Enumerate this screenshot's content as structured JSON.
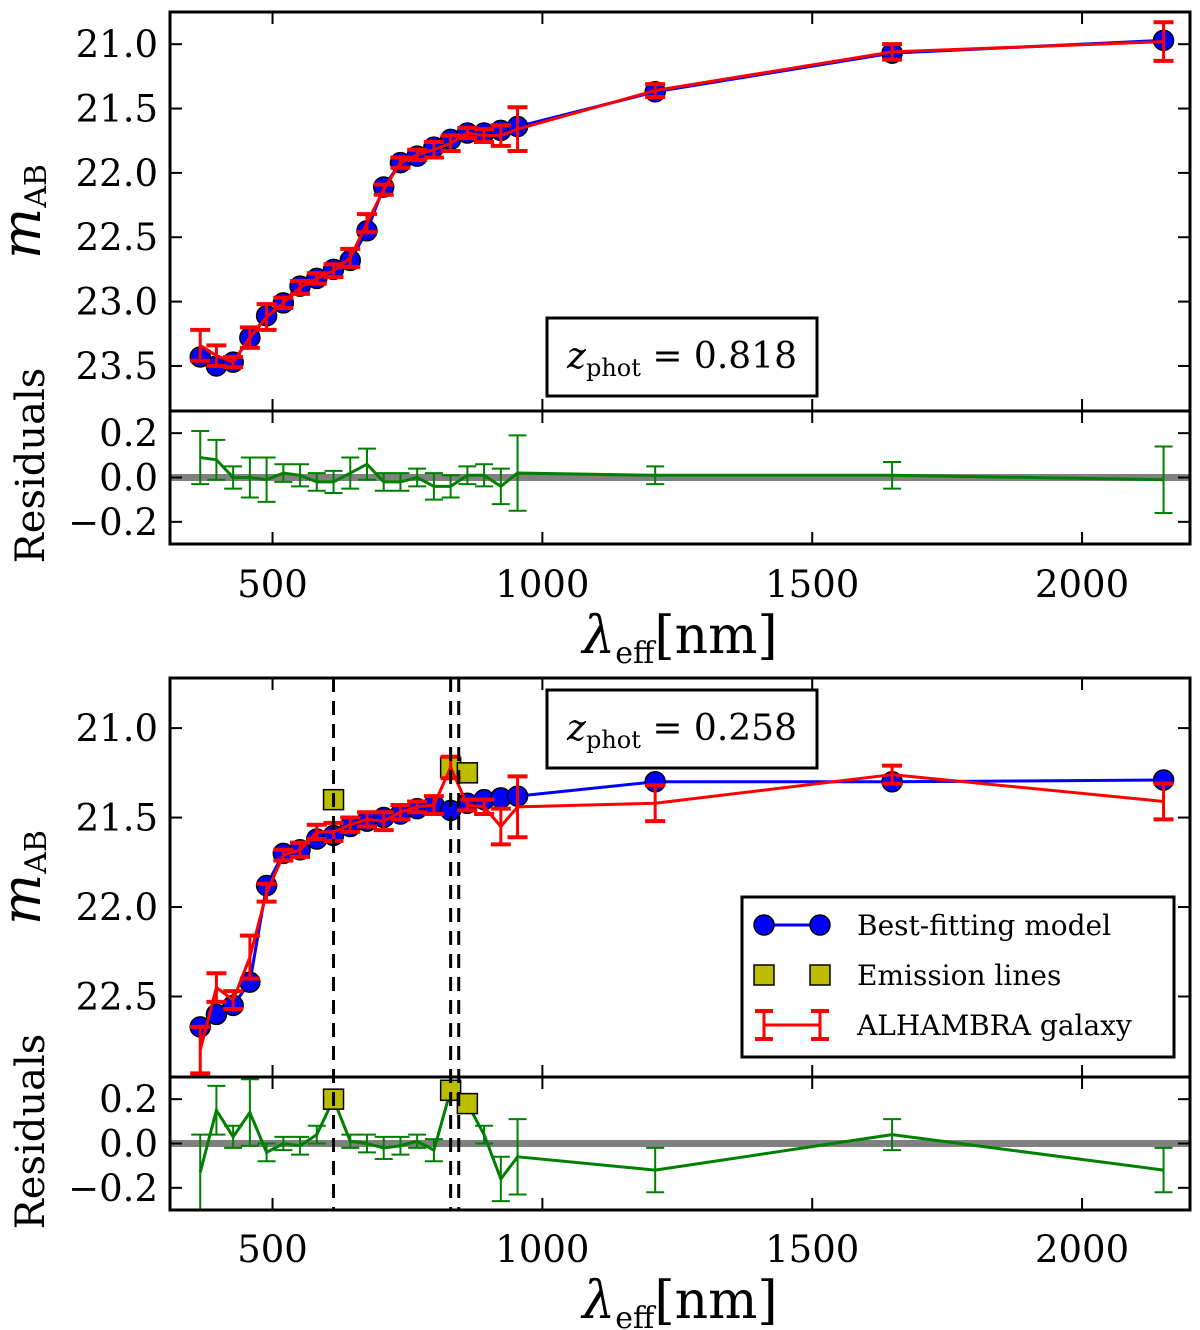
{
  "chart_data": [
    {
      "type": "line",
      "annotation": {
        "prefix": "z",
        "sub": "phot",
        "value": " = 0.818"
      },
      "top": {
        "ylabel_main": "m",
        "ylabel_sub": "AB",
        "ylim": [
          20.75,
          23.85
        ],
        "inverted": true,
        "yticks": [
          "21.0",
          "21.5",
          "22.0",
          "22.5",
          "23.0",
          "23.5"
        ],
        "ytick_values": [
          21.0,
          21.5,
          22.0,
          22.5,
          23.0,
          23.5
        ]
      },
      "bottom": {
        "ylabel": "Residuals",
        "ylim": [
          -0.3,
          0.3
        ],
        "yticks": [
          "0.2",
          "0.0",
          "−0.2"
        ],
        "ytick_values": [
          0.2,
          0.0,
          -0.2
        ]
      },
      "xlim": [
        310,
        2200
      ],
      "xticks": [
        "500",
        "1000",
        "1500",
        "2000"
      ],
      "xtick_values": [
        500,
        1000,
        1500,
        2000
      ],
      "xlabel_main": "λ",
      "xlabel_sub": "eff",
      "xlabel_unit": "[nm]",
      "x": [
        366,
        396,
        427,
        458,
        489,
        520,
        551,
        582,
        613,
        644,
        675,
        706,
        737,
        768,
        799,
        830,
        861,
        892,
        923,
        954,
        1209,
        1648,
        2151
      ],
      "series": [
        {
          "name": "model",
          "color": "#0000ff",
          "values": [
            23.43,
            23.5,
            23.47,
            23.28,
            23.11,
            23.01,
            22.88,
            22.82,
            22.75,
            22.68,
            22.45,
            22.11,
            21.92,
            21.87,
            21.8,
            21.74,
            21.69,
            21.69,
            21.67,
            21.64,
            21.37,
            21.07,
            20.97
          ]
        },
        {
          "name": "data",
          "color": "#ff0000",
          "values": [
            23.34,
            23.42,
            23.47,
            23.28,
            23.12,
            23.01,
            22.89,
            22.82,
            22.76,
            22.66,
            22.39,
            22.13,
            21.92,
            21.86,
            21.82,
            21.77,
            21.69,
            21.71,
            21.71,
            21.66,
            21.36,
            21.06,
            20.98
          ],
          "errors": [
            0.12,
            0.08,
            0.04,
            0.08,
            0.1,
            0.04,
            0.05,
            0.04,
            0.05,
            0.07,
            0.07,
            0.04,
            0.04,
            0.04,
            0.06,
            0.06,
            0.04,
            0.05,
            0.08,
            0.17,
            0.05,
            0.06,
            0.15
          ]
        },
        {
          "name": "residual",
          "color": "#008000",
          "values": [
            0.09,
            0.08,
            0.0,
            0.0,
            -0.01,
            0.02,
            0.01,
            -0.02,
            -0.02,
            0.02,
            0.06,
            -0.02,
            -0.02,
            0.0,
            -0.04,
            -0.04,
            0.01,
            0.01,
            -0.04,
            0.02,
            0.01,
            0.01,
            -0.01
          ],
          "errors": [
            0.12,
            0.09,
            0.05,
            0.09,
            0.1,
            0.04,
            0.05,
            0.04,
            0.05,
            0.07,
            0.07,
            0.04,
            0.04,
            0.04,
            0.06,
            0.05,
            0.04,
            0.05,
            0.08,
            0.17,
            0.04,
            0.06,
            0.15
          ]
        }
      ]
    },
    {
      "type": "line",
      "annotation": {
        "prefix": "z",
        "sub": "phot",
        "value": " = 0.258"
      },
      "top": {
        "ylabel_main": "m",
        "ylabel_sub": "AB",
        "ylim": [
          20.72,
          22.95
        ],
        "inverted": true,
        "yticks": [
          "21.0",
          "21.5",
          "22.0",
          "22.5"
        ],
        "ytick_values": [
          21.0,
          21.5,
          22.0,
          22.5
        ]
      },
      "bottom": {
        "ylabel": "Residuals",
        "ylim": [
          -0.3,
          0.3
        ],
        "yticks": [
          "0.2",
          "0.0",
          "−0.2"
        ],
        "ytick_values": [
          0.2,
          0.0,
          -0.2
        ]
      },
      "xlim": [
        310,
        2200
      ],
      "xticks": [
        "500",
        "1000",
        "1500",
        "2000"
      ],
      "xtick_values": [
        500,
        1000,
        1500,
        2000
      ],
      "xlabel_main": "λ",
      "xlabel_sub": "eff",
      "xlabel_unit": "[nm]",
      "vlines": [
        613,
        830,
        845
      ],
      "x": [
        366,
        396,
        427,
        458,
        489,
        520,
        551,
        582,
        613,
        644,
        675,
        706,
        737,
        768,
        799,
        830,
        861,
        892,
        923,
        954,
        1209,
        1648,
        2151
      ],
      "series": [
        {
          "name": "Best-fitting model",
          "color": "#0000ff",
          "values": [
            22.67,
            22.6,
            22.55,
            22.42,
            21.88,
            21.7,
            21.68,
            21.62,
            21.6,
            21.55,
            21.52,
            21.5,
            21.48,
            21.45,
            21.43,
            21.46,
            21.42,
            21.4,
            21.39,
            21.38,
            21.3,
            21.3,
            21.29
          ]
        },
        {
          "name": "Emission lines",
          "color": "#bcbd00",
          "x": [
            613,
            830,
            861
          ],
          "values": [
            21.4,
            21.22,
            21.25
          ],
          "residuals": [
            0.2,
            0.24,
            0.18
          ]
        },
        {
          "name": "ALHAMBRA galaxy",
          "color": "#ff0000",
          "values": [
            22.8,
            22.45,
            22.52,
            22.28,
            21.92,
            21.71,
            21.68,
            21.58,
            21.58,
            21.54,
            21.51,
            21.52,
            21.47,
            21.44,
            21.43,
            21.22,
            21.43,
            21.44,
            21.55,
            21.44,
            21.42,
            21.26,
            21.41
          ],
          "errors": [
            0.13,
            0.08,
            0.05,
            0.12,
            0.05,
            0.03,
            0.04,
            0.04,
            0.05,
            0.04,
            0.04,
            0.05,
            0.04,
            0.03,
            0.05,
            0.06,
            0.03,
            0.04,
            0.1,
            0.17,
            0.1,
            0.05,
            0.1
          ]
        },
        {
          "name": "residual",
          "color": "#008000",
          "values": [
            -0.13,
            0.15,
            0.03,
            0.14,
            -0.04,
            0.0,
            -0.01,
            0.04,
            0.2,
            0.01,
            0.0,
            -0.02,
            -0.01,
            0.01,
            -0.03,
            0.24,
            0.18,
            0.04,
            -0.16,
            -0.06,
            -0.12,
            0.04,
            -0.12
          ],
          "errors": [
            0.17,
            0.11,
            0.05,
            0.15,
            0.04,
            0.03,
            0.04,
            0.04,
            0.0,
            0.03,
            0.04,
            0.05,
            0.04,
            0.03,
            0.05,
            0.0,
            0.0,
            0.04,
            0.1,
            0.17,
            0.1,
            0.07,
            0.1
          ]
        }
      ]
    }
  ],
  "legend": {
    "placement": "lower-right",
    "items": [
      {
        "label": "Best-fitting model",
        "marker": "circle-line",
        "color": "#0000ff"
      },
      {
        "label": "Emission lines",
        "marker": "square",
        "color": "#bcbd00"
      },
      {
        "label": "ALHAMBRA galaxy",
        "marker": "errorbar",
        "color": "#ff0000"
      }
    ]
  },
  "zero_line_color": "#808080"
}
